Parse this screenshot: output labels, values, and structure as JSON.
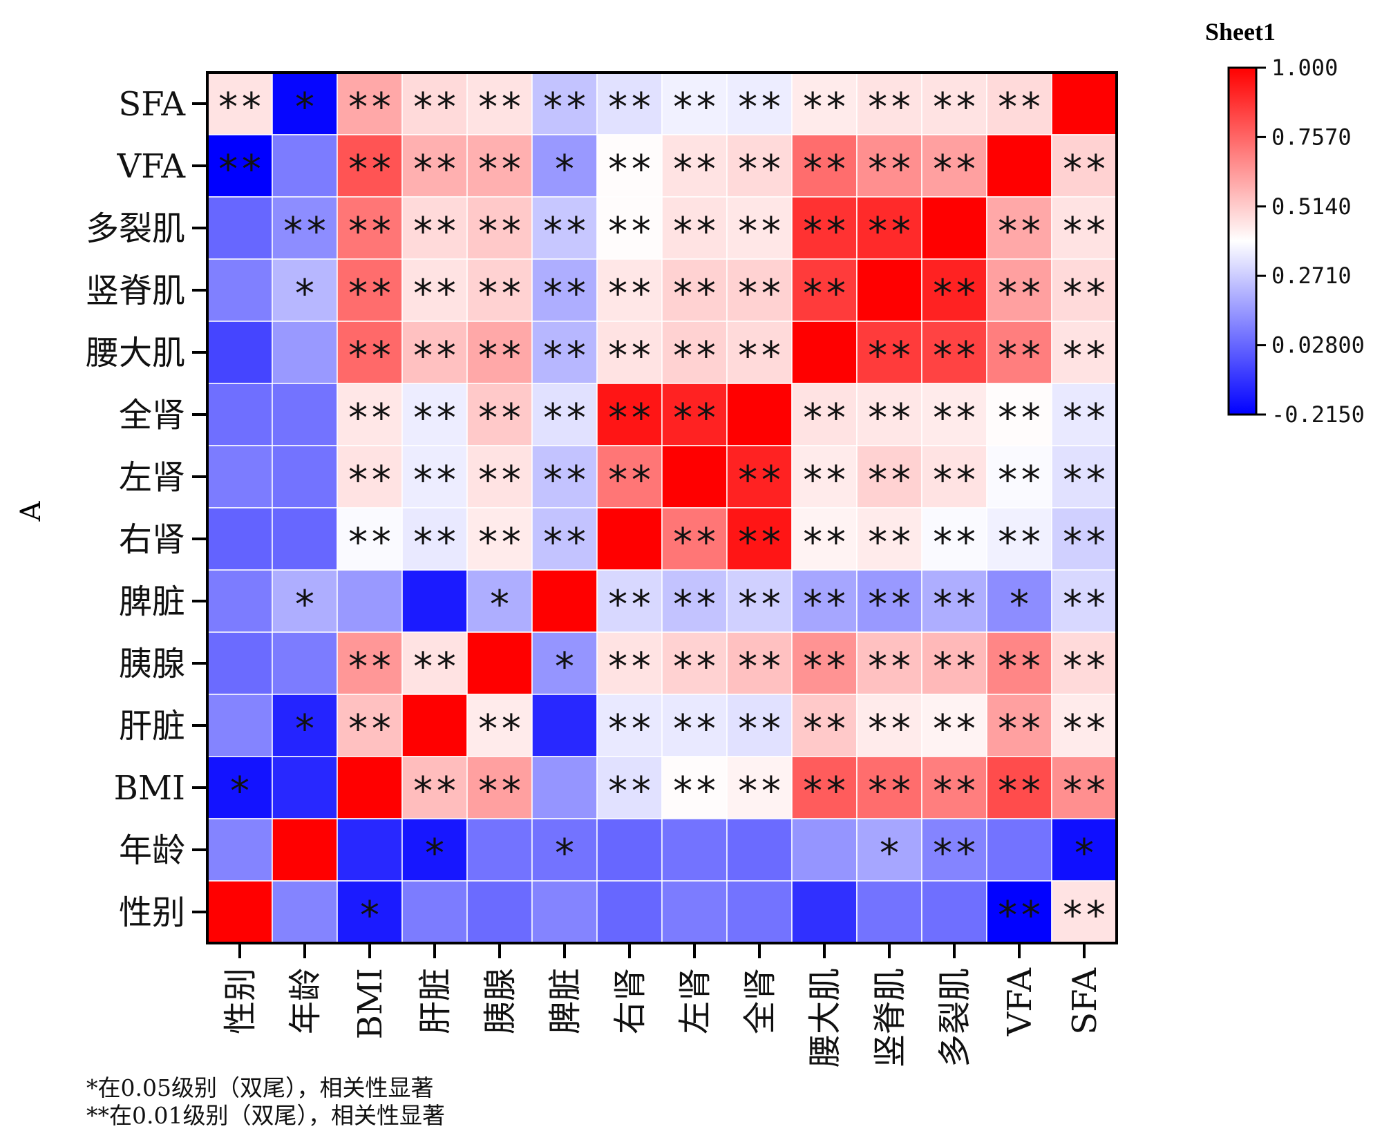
{
  "chart_data": {
    "type": "heatmap",
    "title": "",
    "ylabel": "A",
    "xlabel": "",
    "columns": [
      "性别",
      "年龄",
      "BMI",
      "肝脏",
      "胰腺",
      "脾脏",
      "右肾",
      "左肾",
      "全肾",
      "腰大肌",
      "竖脊肌",
      "多裂肌",
      "VFA",
      "SFA"
    ],
    "rows": [
      "SFA",
      "VFA",
      "多裂肌",
      "竖脊肌",
      "腰大肌",
      "全肾",
      "左肾",
      "右肾",
      "脾脏",
      "胰腺",
      "肝脏",
      "BMI",
      "年龄",
      "性别"
    ],
    "values": [
      [
        0.46,
        -0.2,
        0.6,
        0.48,
        0.46,
        0.25,
        0.32,
        0.36,
        0.35,
        0.44,
        0.46,
        0.46,
        0.48,
        1.0
      ],
      [
        -0.215,
        0.08,
        0.8,
        0.58,
        0.58,
        0.15,
        0.4,
        0.46,
        0.48,
        0.74,
        0.66,
        0.62,
        1.0,
        0.5
      ],
      [
        0.03,
        0.12,
        0.72,
        0.48,
        0.52,
        0.26,
        0.4,
        0.46,
        0.45,
        0.88,
        0.9,
        1.0,
        0.6,
        0.46
      ],
      [
        0.09,
        0.22,
        0.74,
        0.46,
        0.5,
        0.2,
        0.45,
        0.5,
        0.5,
        0.86,
        1.0,
        0.92,
        0.62,
        0.48
      ],
      [
        -0.05,
        0.15,
        0.75,
        0.54,
        0.6,
        0.22,
        0.46,
        0.5,
        0.48,
        1.0,
        0.86,
        0.84,
        0.7,
        0.46
      ],
      [
        0.05,
        0.06,
        0.45,
        0.35,
        0.52,
        0.32,
        0.95,
        0.92,
        1.0,
        0.46,
        0.45,
        0.44,
        0.4,
        0.34
      ],
      [
        0.08,
        0.06,
        0.46,
        0.35,
        0.46,
        0.25,
        0.72,
        1.0,
        0.92,
        0.44,
        0.5,
        0.46,
        0.38,
        0.32
      ],
      [
        0.02,
        0.03,
        0.38,
        0.34,
        0.44,
        0.25,
        1.0,
        0.72,
        0.95,
        0.42,
        0.44,
        0.38,
        0.36,
        0.28
      ],
      [
        0.08,
        0.2,
        0.15,
        -0.15,
        0.2,
        1.0,
        0.3,
        0.25,
        0.28,
        0.18,
        0.15,
        0.2,
        0.12,
        0.3
      ],
      [
        0.04,
        0.08,
        0.64,
        0.46,
        1.0,
        0.14,
        0.46,
        0.5,
        0.54,
        0.65,
        0.54,
        0.56,
        0.68,
        0.48
      ],
      [
        0.1,
        -0.13,
        0.54,
        1.0,
        0.44,
        -0.12,
        0.34,
        0.34,
        0.32,
        0.52,
        0.44,
        0.42,
        0.62,
        0.44
      ],
      [
        -0.17,
        -0.12,
        1.0,
        0.55,
        0.62,
        0.14,
        0.32,
        0.4,
        0.42,
        0.78,
        0.74,
        0.7,
        0.82,
        0.66
      ],
      [
        0.1,
        1.0,
        -0.12,
        -0.16,
        0.06,
        0.06,
        0.03,
        0.06,
        0.04,
        0.14,
        0.18,
        0.1,
        0.06,
        -0.18
      ],
      [
        1.0,
        0.1,
        -0.15,
        0.08,
        0.04,
        0.1,
        0.03,
        0.08,
        0.06,
        -0.1,
        0.06,
        0.05,
        -0.21,
        0.46
      ]
    ],
    "significance": [
      [
        "**",
        "*",
        "**",
        "**",
        "**",
        "**",
        "**",
        "**",
        "**",
        "**",
        "**",
        "**",
        "**",
        ""
      ],
      [
        "**",
        "",
        "**",
        "**",
        "**",
        "*",
        "**",
        "**",
        "**",
        "**",
        "**",
        "**",
        "",
        "**"
      ],
      [
        "",
        "**",
        "**",
        "**",
        "**",
        "**",
        "**",
        "**",
        "**",
        "**",
        "**",
        "",
        "**",
        "**"
      ],
      [
        "",
        "*",
        "**",
        "**",
        "**",
        "**",
        "**",
        "**",
        "**",
        "**",
        "",
        "**",
        "**",
        "**"
      ],
      [
        "",
        "",
        "**",
        "**",
        "**",
        "**",
        "**",
        "**",
        "**",
        "",
        "**",
        "**",
        "**",
        "**"
      ],
      [
        "",
        "",
        "**",
        "**",
        "**",
        "**",
        "**",
        "**",
        "",
        "**",
        "**",
        "**",
        "**",
        "**"
      ],
      [
        "",
        "",
        "**",
        "**",
        "**",
        "**",
        "**",
        "",
        "**",
        "**",
        "**",
        "**",
        "**",
        "**"
      ],
      [
        "",
        "",
        "**",
        "**",
        "**",
        "**",
        "",
        "**",
        "**",
        "**",
        "**",
        "**",
        "**",
        "**"
      ],
      [
        "",
        "*",
        "",
        "",
        "*",
        "",
        "**",
        "**",
        "**",
        "**",
        "**",
        "**",
        "*",
        "**"
      ],
      [
        "",
        "",
        "**",
        "**",
        "",
        "*",
        "**",
        "**",
        "**",
        "**",
        "**",
        "**",
        "**",
        "**"
      ],
      [
        "",
        "*",
        "**",
        "",
        "**",
        "",
        "**",
        "**",
        "**",
        "**",
        "**",
        "**",
        "**",
        "**"
      ],
      [
        "*",
        "",
        "",
        "**",
        "**",
        "",
        "**",
        "**",
        "**",
        "**",
        "**",
        "**",
        "**",
        "**"
      ],
      [
        "",
        "",
        "",
        "*",
        "",
        "*",
        "",
        "",
        "",
        "",
        "*",
        "**",
        "",
        "*"
      ],
      [
        "",
        "",
        "*",
        "",
        "",
        "",
        "",
        "",
        "",
        "",
        "",
        "",
        "**",
        "**"
      ]
    ],
    "colorbar": {
      "title": "Sheet1",
      "min": -0.215,
      "max": 1.0,
      "ticks": [
        "1.000",
        "0.7570",
        "0.5140",
        "0.2710",
        "0.02800",
        "-0.2150"
      ],
      "colors": [
        "#0000ff",
        "#ffffff",
        "#ff0000"
      ]
    }
  },
  "footnotes": {
    "line1": "*在0.05级别（双尾），相关性显著",
    "line2": "**在0.01级别（双尾），相关性显著"
  }
}
